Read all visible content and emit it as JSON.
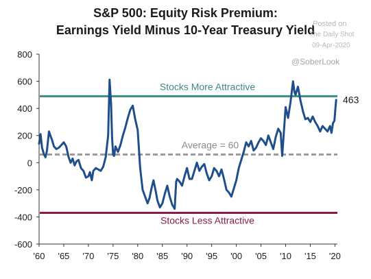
{
  "title_line1": "S&P 500: Equity Risk Premium:",
  "title_line2": "Earnings Yield Minus 10-Year Treasury Yield",
  "watermark": {
    "posted": "Posted on",
    "source": "The Daily Shot",
    "date": "09-Apr-2020",
    "handle": "@SoberLook"
  },
  "colors": {
    "series": "#1f4e8c",
    "upper": "#3a8a86",
    "lower": "#8b1a4a",
    "average": "#999999"
  },
  "chart_data": {
    "type": "line",
    "title": "S&P 500: Equity Risk Premium: Earnings Yield Minus 10-Year Treasury Yield",
    "xlabel": "",
    "ylabel": "",
    "xlim": [
      1960,
      2020.5
    ],
    "ylim": [
      -600,
      800
    ],
    "yticks": [
      800,
      600,
      400,
      200,
      0,
      -200,
      -400,
      -600
    ],
    "yticklabels": [
      "800",
      "600",
      "400",
      "200",
      "0",
      "-200",
      "-400",
      "-600"
    ],
    "xticks": [
      1960,
      1965,
      1970,
      1975,
      1980,
      1985,
      1990,
      1995,
      2000,
      2005,
      2010,
      2015,
      2020
    ],
    "xticklabels": [
      "'60",
      "'65",
      "'70",
      "'75",
      "'80",
      "'85",
      "'90",
      "'95",
      "'00",
      "'05",
      "'10",
      "'15",
      "'20"
    ],
    "grid": false,
    "reference_lines": [
      {
        "label": "Stocks More Attractive",
        "y": 490
      },
      {
        "label": "Average = 60",
        "y": 60
      },
      {
        "label": "Stocks Less Attractive",
        "y": -370
      }
    ],
    "end_label": "463",
    "series": [
      {
        "x": [
          1960.0,
          1960.3,
          1960.6,
          1961.0,
          1961.3,
          1961.6,
          1962.0,
          1962.3,
          1962.6,
          1963.0,
          1963.5,
          1964.0,
          1964.5,
          1965.0,
          1965.5,
          1966.0,
          1966.4,
          1966.8,
          1967.2,
          1967.6,
          1968.0,
          1968.5,
          1969.0,
          1969.5,
          1970.0,
          1970.3,
          1970.7,
          1971.0,
          1971.5,
          1972.0,
          1972.5,
          1973.0,
          1973.5,
          1974.0,
          1974.3,
          1974.6,
          1974.8,
          1975.0,
          1975.2,
          1975.5,
          1976.0,
          1976.5,
          1977.0,
          1977.5,
          1978.0,
          1978.5,
          1979.0,
          1979.5,
          1980.0,
          1980.5,
          1981.0,
          1981.5,
          1982.0,
          1982.4,
          1982.8,
          1983.2,
          1983.6,
          1984.0,
          1984.5,
          1985.0,
          1985.5,
          1986.0,
          1986.5,
          1987.0,
          1987.5,
          1987.8,
          1988.0,
          1988.5,
          1989.0,
          1989.5,
          1990.0,
          1990.5,
          1991.0,
          1991.5,
          1992.0,
          1992.5,
          1993.0,
          1993.5,
          1994.0,
          1994.5,
          1995.0,
          1995.5,
          1996.0,
          1996.5,
          1997.0,
          1997.5,
          1998.0,
          1998.5,
          1999.0,
          1999.5,
          2000.0,
          2000.5,
          2001.0,
          2001.5,
          2002.0,
          2002.5,
          2003.0,
          2003.5,
          2004.0,
          2004.5,
          2005.0,
          2005.5,
          2006.0,
          2006.5,
          2007.0,
          2007.5,
          2008.0,
          2008.5,
          2009.0,
          2009.3,
          2009.6,
          2010.0,
          2010.5,
          2011.0,
          2011.5,
          2011.8,
          2012.0,
          2012.5,
          2013.0,
          2013.5,
          2014.0,
          2014.5,
          2015.0,
          2015.5,
          2016.0,
          2016.5,
          2017.0,
          2017.5,
          2018.0,
          2018.5,
          2019.0,
          2019.3,
          2019.6,
          2019.9,
          2020.1,
          2020.25
        ],
        "values": [
          140,
          210,
          110,
          60,
          40,
          90,
          230,
          200,
          170,
          120,
          100,
          110,
          130,
          150,
          120,
          40,
          0,
          30,
          -20,
          10,
          20,
          -40,
          -60,
          -110,
          -100,
          -70,
          -130,
          -60,
          -40,
          -50,
          -60,
          -30,
          40,
          200,
          612,
          430,
          190,
          60,
          50,
          120,
          80,
          130,
          200,
          260,
          330,
          390,
          420,
          320,
          240,
          -40,
          -200,
          -250,
          -300,
          -260,
          -190,
          -130,
          -200,
          -280,
          -330,
          -300,
          -230,
          -170,
          -250,
          -310,
          -340,
          -140,
          -120,
          -140,
          -170,
          -100,
          -40,
          -120,
          -120,
          -60,
          0,
          -60,
          -30,
          -10,
          -80,
          -130,
          -100,
          -40,
          -60,
          -100,
          -50,
          -120,
          -200,
          -220,
          -250,
          -190,
          -130,
          -40,
          20,
          80,
          150,
          120,
          160,
          90,
          110,
          150,
          180,
          160,
          130,
          200,
          150,
          100,
          190,
          250,
          220,
          50,
          200,
          410,
          330,
          450,
          600,
          520,
          500,
          560,
          460,
          380,
          320,
          330,
          300,
          340,
          300,
          270,
          230,
          270,
          250,
          230,
          270,
          220,
          290,
          310,
          400,
          463
        ]
      }
    ]
  }
}
